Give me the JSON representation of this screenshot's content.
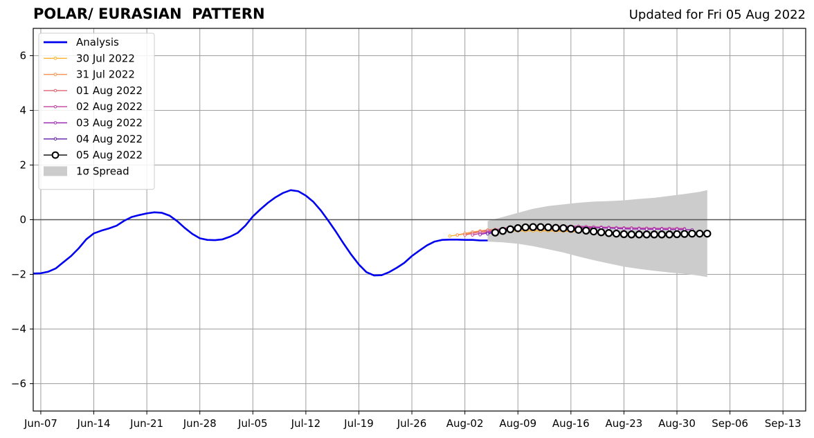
{
  "header": {
    "title": "POLAR/ EURASIAN  PATTERN",
    "updated": "Updated for Fri 05 Aug 2022"
  },
  "chart_data": {
    "type": "line",
    "title": "POLAR/ EURASIAN  PATTERN",
    "xlabel": "",
    "ylabel": "",
    "x_ticks": [
      "Jun-07",
      "Jun-14",
      "Jun-21",
      "Jun-28",
      "Jul-05",
      "Jul-12",
      "Jul-19",
      "Jul-26",
      "Aug-02",
      "Aug-09",
      "Aug-16",
      "Aug-23",
      "Aug-30",
      "Sep-06",
      "Sep-13"
    ],
    "x_range": [
      "2022-06-06",
      "2022-09-16"
    ],
    "y_ticks": [
      -6,
      -4,
      -2,
      0,
      2,
      4,
      6
    ],
    "ylim": [
      -7,
      7
    ],
    "grid": true,
    "zero_line": true,
    "legend_position": "top-left",
    "analysis": {
      "name": "Analysis",
      "color": "#0000ee",
      "points": [
        [
          "2022-06-06",
          -1.97
        ],
        [
          "2022-06-07",
          -1.96
        ],
        [
          "2022-06-08",
          -1.9
        ],
        [
          "2022-06-09",
          -1.78
        ],
        [
          "2022-06-10",
          -1.55
        ],
        [
          "2022-06-11",
          -1.33
        ],
        [
          "2022-06-12",
          -1.05
        ],
        [
          "2022-06-13",
          -0.72
        ],
        [
          "2022-06-14",
          -0.5
        ],
        [
          "2022-06-15",
          -0.4
        ],
        [
          "2022-06-16",
          -0.32
        ],
        [
          "2022-06-17",
          -0.22
        ],
        [
          "2022-06-18",
          -0.04
        ],
        [
          "2022-06-19",
          0.1
        ],
        [
          "2022-06-20",
          0.17
        ],
        [
          "2022-06-21",
          0.23
        ],
        [
          "2022-06-22",
          0.27
        ],
        [
          "2022-06-23",
          0.25
        ],
        [
          "2022-06-24",
          0.15
        ],
        [
          "2022-06-25",
          -0.05
        ],
        [
          "2022-06-26",
          -0.3
        ],
        [
          "2022-06-27",
          -0.52
        ],
        [
          "2022-06-28",
          -0.68
        ],
        [
          "2022-06-29",
          -0.74
        ],
        [
          "2022-06-30",
          -0.75
        ],
        [
          "2022-07-01",
          -0.72
        ],
        [
          "2022-07-02",
          -0.62
        ],
        [
          "2022-07-03",
          -0.48
        ],
        [
          "2022-07-04",
          -0.22
        ],
        [
          "2022-07-05",
          0.12
        ],
        [
          "2022-07-06",
          0.38
        ],
        [
          "2022-07-07",
          0.62
        ],
        [
          "2022-07-08",
          0.82
        ],
        [
          "2022-07-09",
          0.98
        ],
        [
          "2022-07-10",
          1.08
        ],
        [
          "2022-07-11",
          1.04
        ],
        [
          "2022-07-12",
          0.88
        ],
        [
          "2022-07-13",
          0.65
        ],
        [
          "2022-07-14",
          0.33
        ],
        [
          "2022-07-15",
          -0.05
        ],
        [
          "2022-07-16",
          -0.45
        ],
        [
          "2022-07-17",
          -0.88
        ],
        [
          "2022-07-18",
          -1.28
        ],
        [
          "2022-07-19",
          -1.64
        ],
        [
          "2022-07-20",
          -1.92
        ],
        [
          "2022-07-21",
          -2.04
        ],
        [
          "2022-07-22",
          -2.03
        ],
        [
          "2022-07-23",
          -1.92
        ],
        [
          "2022-07-24",
          -1.76
        ],
        [
          "2022-07-25",
          -1.58
        ],
        [
          "2022-07-26",
          -1.33
        ],
        [
          "2022-07-27",
          -1.13
        ],
        [
          "2022-07-28",
          -0.94
        ],
        [
          "2022-07-29",
          -0.8
        ],
        [
          "2022-07-30",
          -0.74
        ],
        [
          "2022-07-31",
          -0.73
        ],
        [
          "2022-08-01",
          -0.73
        ],
        [
          "2022-08-02",
          -0.74
        ],
        [
          "2022-08-03",
          -0.74
        ],
        [
          "2022-08-04",
          -0.76
        ],
        [
          "2022-08-05",
          -0.76
        ]
      ]
    },
    "forecasts": [
      {
        "name": "30 Jul 2022",
        "color": "#ffb02e",
        "points": [
          [
            "2022-07-31",
            -0.6
          ],
          [
            "2022-08-01",
            -0.56
          ],
          [
            "2022-08-02",
            -0.52
          ],
          [
            "2022-08-03",
            -0.48
          ],
          [
            "2022-08-04",
            -0.44
          ],
          [
            "2022-08-05",
            -0.42
          ],
          [
            "2022-08-06",
            -0.42
          ],
          [
            "2022-08-07",
            -0.42
          ],
          [
            "2022-08-08",
            -0.41
          ],
          [
            "2022-08-09",
            -0.41
          ],
          [
            "2022-08-10",
            -0.41
          ],
          [
            "2022-08-11",
            -0.41
          ],
          [
            "2022-08-12",
            -0.41
          ],
          [
            "2022-08-13",
            -0.41
          ],
          [
            "2022-08-14",
            -0.42
          ],
          [
            "2022-08-15",
            -0.42
          ],
          [
            "2022-08-16",
            -0.43
          ],
          [
            "2022-08-17",
            -0.44
          ]
        ]
      },
      {
        "name": "31 Jul 2022",
        "color": "#f78f4a",
        "points": [
          [
            "2022-08-01",
            -0.56
          ],
          [
            "2022-08-02",
            -0.5
          ],
          [
            "2022-08-03",
            -0.45
          ],
          [
            "2022-08-04",
            -0.41
          ],
          [
            "2022-08-05",
            -0.38
          ],
          [
            "2022-08-06",
            -0.36
          ],
          [
            "2022-08-07",
            -0.35
          ],
          [
            "2022-08-08",
            -0.35
          ],
          [
            "2022-08-09",
            -0.35
          ],
          [
            "2022-08-10",
            -0.35
          ],
          [
            "2022-08-11",
            -0.35
          ],
          [
            "2022-08-12",
            -0.36
          ],
          [
            "2022-08-13",
            -0.37
          ],
          [
            "2022-08-14",
            -0.38
          ],
          [
            "2022-08-15",
            -0.39
          ],
          [
            "2022-08-16",
            -0.4
          ],
          [
            "2022-08-17",
            -0.42
          ],
          [
            "2022-08-18",
            -0.43
          ]
        ]
      },
      {
        "name": "01 Aug 2022",
        "color": "#e0606e",
        "points": [
          [
            "2022-08-02",
            -0.56
          ],
          [
            "2022-08-03",
            -0.5
          ],
          [
            "2022-08-04",
            -0.44
          ],
          [
            "2022-08-05",
            -0.39
          ],
          [
            "2022-08-06",
            -0.36
          ],
          [
            "2022-08-07",
            -0.33
          ],
          [
            "2022-08-08",
            -0.31
          ],
          [
            "2022-08-09",
            -0.3
          ],
          [
            "2022-08-10",
            -0.3
          ],
          [
            "2022-08-11",
            -0.3
          ],
          [
            "2022-08-12",
            -0.3
          ],
          [
            "2022-08-13",
            -0.3
          ],
          [
            "2022-08-14",
            -0.3
          ],
          [
            "2022-08-15",
            -0.3
          ],
          [
            "2022-08-16",
            -0.31
          ],
          [
            "2022-08-17",
            -0.31
          ],
          [
            "2022-08-18",
            -0.32
          ],
          [
            "2022-08-19",
            -0.33
          ]
        ]
      },
      {
        "name": "02 Aug 2022",
        "color": "#c0409e",
        "points": [
          [
            "2022-08-03",
            -0.56
          ],
          [
            "2022-08-04",
            -0.5
          ],
          [
            "2022-08-05",
            -0.45
          ],
          [
            "2022-08-06",
            -0.38
          ],
          [
            "2022-08-07",
            -0.32
          ],
          [
            "2022-08-08",
            -0.28
          ],
          [
            "2022-08-09",
            -0.26
          ],
          [
            "2022-08-10",
            -0.25
          ],
          [
            "2022-08-11",
            -0.24
          ],
          [
            "2022-08-12",
            -0.24
          ],
          [
            "2022-08-13",
            -0.24
          ],
          [
            "2022-08-14",
            -0.24
          ],
          [
            "2022-08-15",
            -0.24
          ],
          [
            "2022-08-16",
            -0.24
          ],
          [
            "2022-08-17",
            -0.24
          ],
          [
            "2022-08-18",
            -0.25
          ],
          [
            "2022-08-19",
            -0.26
          ],
          [
            "2022-08-20",
            -0.27
          ],
          [
            "2022-08-21",
            -0.28
          ],
          [
            "2022-08-22",
            -0.29
          ],
          [
            "2022-08-23",
            -0.3
          ],
          [
            "2022-08-24",
            -0.3
          ],
          [
            "2022-08-25",
            -0.31
          ],
          [
            "2022-08-26",
            -0.31
          ],
          [
            "2022-08-27",
            -0.32
          ],
          [
            "2022-08-28",
            -0.32
          ],
          [
            "2022-08-29",
            -0.32
          ],
          [
            "2022-08-30",
            -0.32
          ],
          [
            "2022-08-31",
            -0.33
          ]
        ]
      },
      {
        "name": "03 Aug 2022",
        "color": "#9a28b4",
        "points": [
          [
            "2022-08-04",
            -0.55
          ],
          [
            "2022-08-05",
            -0.48
          ],
          [
            "2022-08-06",
            -0.42
          ],
          [
            "2022-08-07",
            -0.36
          ],
          [
            "2022-08-08",
            -0.32
          ],
          [
            "2022-08-09",
            -0.29
          ],
          [
            "2022-08-10",
            -0.27
          ],
          [
            "2022-08-11",
            -0.26
          ],
          [
            "2022-08-12",
            -0.26
          ],
          [
            "2022-08-13",
            -0.26
          ],
          [
            "2022-08-14",
            -0.27
          ],
          [
            "2022-08-15",
            -0.27
          ],
          [
            "2022-08-16",
            -0.28
          ],
          [
            "2022-08-17",
            -0.28
          ],
          [
            "2022-08-18",
            -0.29
          ],
          [
            "2022-08-19",
            -0.3
          ],
          [
            "2022-08-20",
            -0.3
          ],
          [
            "2022-08-21",
            -0.31
          ],
          [
            "2022-08-22",
            -0.32
          ],
          [
            "2022-08-23",
            -0.33
          ],
          [
            "2022-08-24",
            -0.34
          ],
          [
            "2022-08-25",
            -0.34
          ],
          [
            "2022-08-26",
            -0.35
          ],
          [
            "2022-08-27",
            -0.35
          ],
          [
            "2022-08-28",
            -0.35
          ],
          [
            "2022-08-29",
            -0.36
          ],
          [
            "2022-08-30",
            -0.36
          ],
          [
            "2022-08-31",
            -0.36
          ],
          [
            "2022-09-01",
            -0.37
          ]
        ]
      },
      {
        "name": "04 Aug 2022",
        "color": "#5c1aa8",
        "points": [
          [
            "2022-08-05",
            -0.52
          ],
          [
            "2022-08-06",
            -0.46
          ],
          [
            "2022-08-07",
            -0.41
          ],
          [
            "2022-08-08",
            -0.37
          ],
          [
            "2022-08-09",
            -0.34
          ],
          [
            "2022-08-10",
            -0.32
          ],
          [
            "2022-08-11",
            -0.31
          ],
          [
            "2022-08-12",
            -0.31
          ],
          [
            "2022-08-13",
            -0.31
          ],
          [
            "2022-08-14",
            -0.31
          ]
        ]
      },
      {
        "name": "05 Aug 2022",
        "color": "#000000",
        "points": [
          [
            "2022-08-06",
            -0.47
          ],
          [
            "2022-08-07",
            -0.41
          ],
          [
            "2022-08-08",
            -0.35
          ],
          [
            "2022-08-09",
            -0.31
          ],
          [
            "2022-08-10",
            -0.28
          ],
          [
            "2022-08-11",
            -0.27
          ],
          [
            "2022-08-12",
            -0.27
          ],
          [
            "2022-08-13",
            -0.28
          ],
          [
            "2022-08-14",
            -0.3
          ],
          [
            "2022-08-15",
            -0.31
          ],
          [
            "2022-08-16",
            -0.33
          ],
          [
            "2022-08-17",
            -0.37
          ],
          [
            "2022-08-18",
            -0.4
          ],
          [
            "2022-08-19",
            -0.43
          ],
          [
            "2022-08-20",
            -0.46
          ],
          [
            "2022-08-21",
            -0.49
          ],
          [
            "2022-08-22",
            -0.51
          ],
          [
            "2022-08-23",
            -0.53
          ],
          [
            "2022-08-24",
            -0.54
          ],
          [
            "2022-08-25",
            -0.54
          ],
          [
            "2022-08-26",
            -0.54
          ],
          [
            "2022-08-27",
            -0.54
          ],
          [
            "2022-08-28",
            -0.54
          ],
          [
            "2022-08-29",
            -0.54
          ],
          [
            "2022-08-30",
            -0.53
          ],
          [
            "2022-08-31",
            -0.52
          ],
          [
            "2022-09-01",
            -0.51
          ],
          [
            "2022-09-02",
            -0.51
          ],
          [
            "2022-09-03",
            -0.51
          ]
        ]
      }
    ],
    "spread": {
      "name": "1σ Spread",
      "color": "#cccccc",
      "points": [
        [
          "2022-08-05",
          -0.05,
          -0.8
        ],
        [
          "2022-08-07",
          0.1,
          -0.83
        ],
        [
          "2022-08-09",
          0.25,
          -0.88
        ],
        [
          "2022-08-11",
          0.4,
          -0.97
        ],
        [
          "2022-08-13",
          0.5,
          -1.08
        ],
        [
          "2022-08-15",
          0.56,
          -1.2
        ],
        [
          "2022-08-17",
          0.62,
          -1.35
        ],
        [
          "2022-08-19",
          0.66,
          -1.48
        ],
        [
          "2022-08-21",
          0.68,
          -1.6
        ],
        [
          "2022-08-23",
          0.71,
          -1.72
        ],
        [
          "2022-08-25",
          0.76,
          -1.8
        ],
        [
          "2022-08-27",
          0.8,
          -1.87
        ],
        [
          "2022-08-29",
          0.87,
          -1.93
        ],
        [
          "2022-08-31",
          0.94,
          -1.98
        ],
        [
          "2022-09-02",
          1.02,
          -2.05
        ],
        [
          "2022-09-03",
          1.08,
          -2.1
        ]
      ]
    },
    "legend": [
      {
        "label": "Analysis",
        "style": "thick",
        "color": "#0000ee"
      },
      {
        "label": "30 Jul 2022",
        "style": "line-dot",
        "color": "#ffb02e"
      },
      {
        "label": "31 Jul 2022",
        "style": "line-dot",
        "color": "#f78f4a"
      },
      {
        "label": "01 Aug 2022",
        "style": "line-dot",
        "color": "#e0606e"
      },
      {
        "label": "02 Aug 2022",
        "style": "line-dot",
        "color": "#c0409e"
      },
      {
        "label": "03 Aug 2022",
        "style": "line-dot",
        "color": "#9a28b4"
      },
      {
        "label": "04 Aug 2022",
        "style": "line-dot",
        "color": "#5c1aa8"
      },
      {
        "label": "05 Aug 2022",
        "style": "line-circle",
        "color": "#000000"
      },
      {
        "label": "1σ Spread",
        "style": "patch",
        "color": "#cccccc"
      }
    ]
  }
}
